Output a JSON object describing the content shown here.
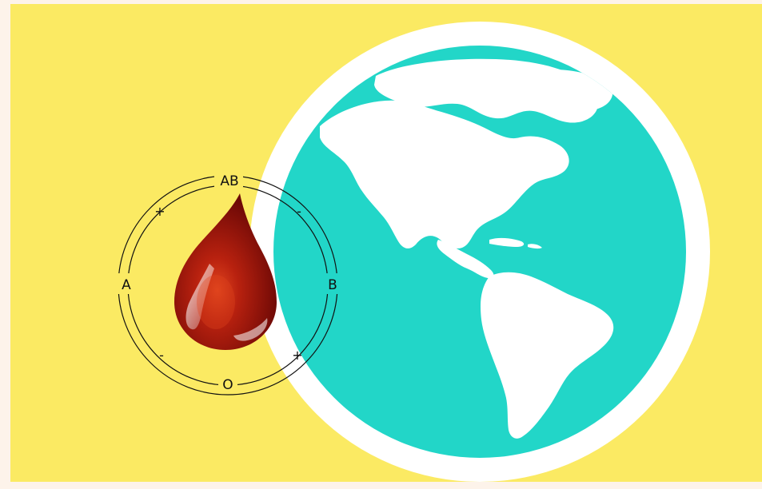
{
  "image": {
    "background_color": "#fbea63",
    "frame_color": "#fdf3ea",
    "globe": {
      "ocean_color": "#22d6c8",
      "border_color": "#ffffff",
      "land_color": "#ffffff"
    },
    "blood_drop": {
      "fill_color": "#8a0e0a",
      "highlight_color": "#e0441e"
    },
    "blood_type_ring": {
      "stroke_color": "#111111",
      "labels": {
        "top": "AB",
        "right": "B",
        "bottom": "O",
        "left": "A",
        "top_left_sign": "+",
        "top_right_sign": "-",
        "bottom_left_sign": "-",
        "bottom_right_sign": "+"
      }
    }
  }
}
